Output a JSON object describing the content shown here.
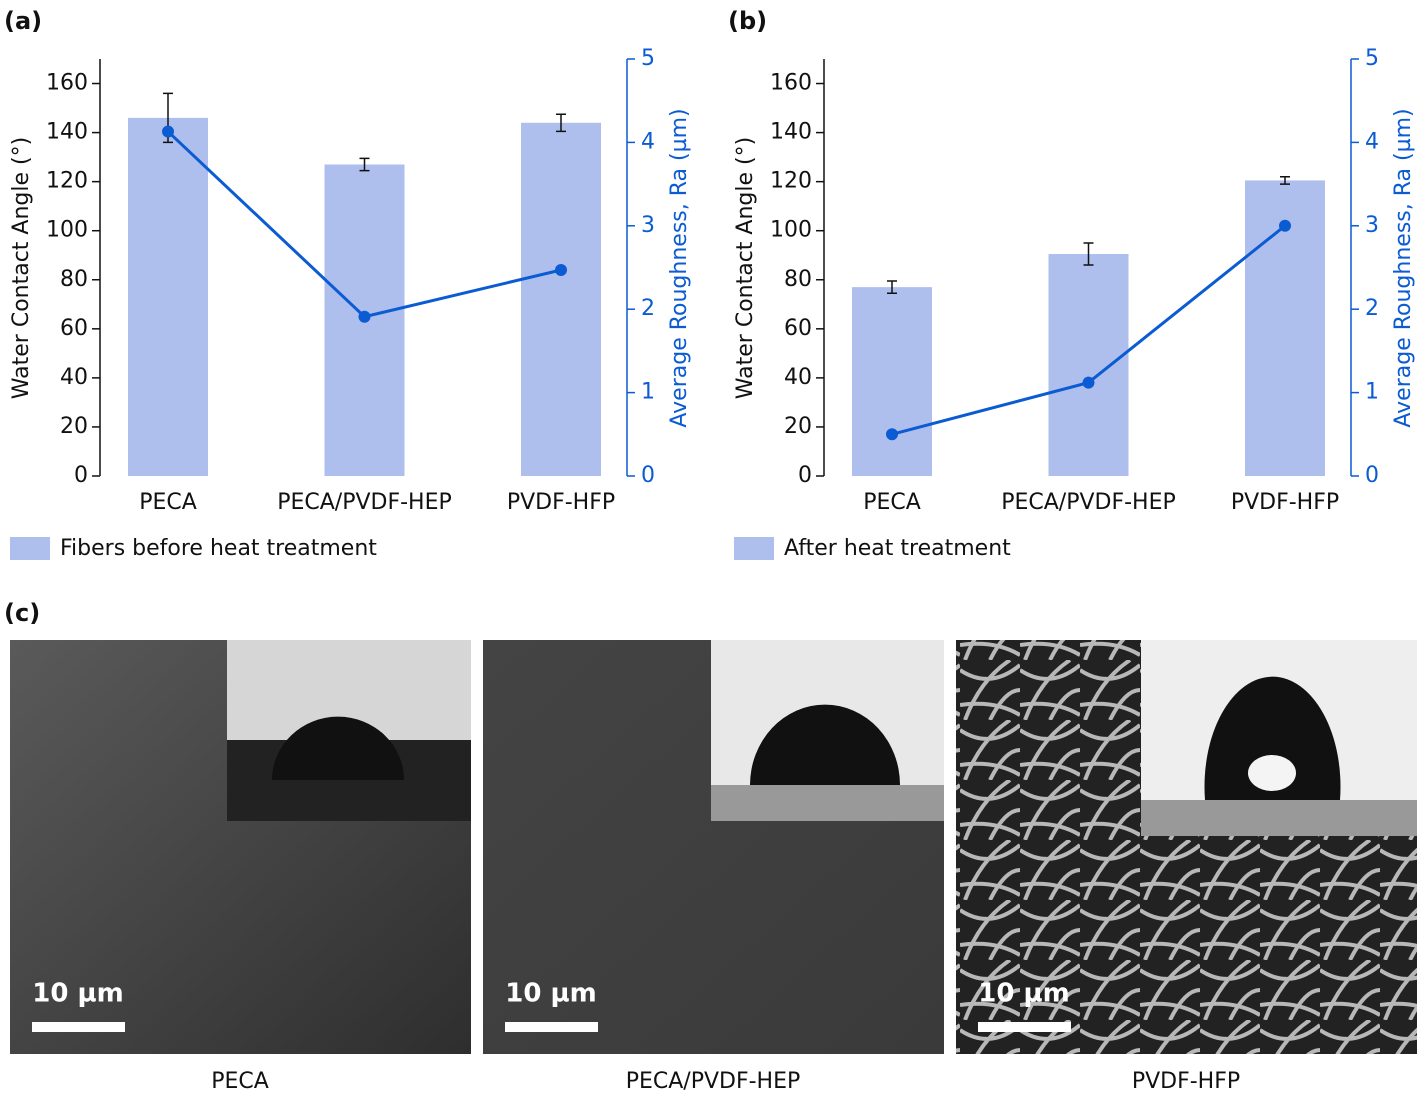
{
  "chart_data": [
    {
      "type": "bar",
      "panel_label": "(a)",
      "ylabel": "Water Contact Angle (°)",
      "y2label": "Average Roughness, Ra (µm)",
      "categories": [
        "PECA",
        "PECA/PVDF-HEP",
        "PVDF-HFP"
      ],
      "series": [
        {
          "name": "Fibers before heat treatment",
          "color": "#aebfee",
          "values": [
            146,
            127,
            144
          ],
          "errors": [
            10,
            2.5,
            3.5
          ]
        },
        {
          "type": "line",
          "axis": "y2",
          "color": "#0b5bd3",
          "values": [
            4.13,
            1.91,
            2.47
          ]
        }
      ],
      "ylim": [
        0,
        170
      ],
      "yticks": [
        0,
        20,
        40,
        60,
        80,
        100,
        120,
        140,
        160
      ],
      "y2lim": [
        0,
        5
      ],
      "y2ticks": [
        0,
        1,
        2,
        3,
        4,
        5
      ],
      "legend": "bottom-left"
    },
    {
      "type": "bar",
      "panel_label": "(b)",
      "ylabel": "Water Contact Angle (°)",
      "y2label": "Average Roughness, Ra (µm)",
      "categories": [
        "PECA",
        "PECA/PVDF-HEP",
        "PVDF-HFP"
      ],
      "series": [
        {
          "name": "After heat treatment",
          "color": "#aebfee",
          "values": [
            77,
            90.5,
            120.5
          ],
          "errors": [
            2.5,
            4.5,
            1.5
          ]
        },
        {
          "type": "line",
          "axis": "y2",
          "color": "#0b5bd3",
          "values": [
            0.5,
            1.12,
            3.0
          ]
        }
      ],
      "ylim": [
        0,
        170
      ],
      "yticks": [
        0,
        20,
        40,
        60,
        80,
        100,
        120,
        140,
        160
      ],
      "y2lim": [
        0,
        5
      ],
      "y2ticks": [
        0,
        1,
        2,
        3,
        4,
        5
      ],
      "legend": "bottom-left"
    }
  ],
  "figure_c": {
    "label": "(c)",
    "images": [
      {
        "scale_bar": "10 µm",
        "caption": "PECA"
      },
      {
        "scale_bar": "10 µm",
        "caption": "PECA/PVDF-HEP"
      },
      {
        "scale_bar": "10 µm",
        "caption": "PVDF-HFP"
      }
    ]
  }
}
